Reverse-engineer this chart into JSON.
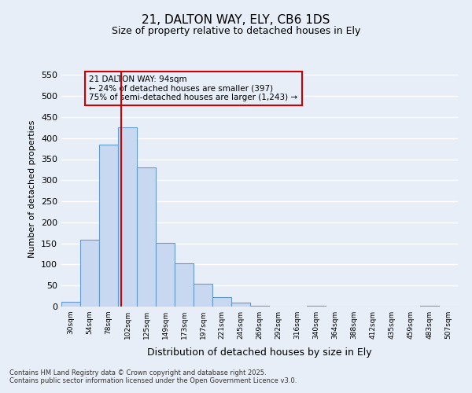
{
  "title1": "21, DALTON WAY, ELY, CB6 1DS",
  "title2": "Size of property relative to detached houses in Ely",
  "xlabel": "Distribution of detached houses by size in Ely",
  "ylabel": "Number of detached properties",
  "categories": [
    "30sqm",
    "54sqm",
    "78sqm",
    "102sqm",
    "125sqm",
    "149sqm",
    "173sqm",
    "197sqm",
    "221sqm",
    "245sqm",
    "269sqm",
    "292sqm",
    "316sqm",
    "340sqm",
    "364sqm",
    "388sqm",
    "412sqm",
    "435sqm",
    "459sqm",
    "483sqm",
    "507sqm"
  ],
  "values": [
    12,
    158,
    385,
    425,
    330,
    152,
    103,
    55,
    22,
    10,
    2,
    0,
    0,
    2,
    0,
    0,
    0,
    0,
    0,
    1,
    0
  ],
  "bar_color": "#c8d8f0",
  "bar_edge_color": "#6699cc",
  "vline_color": "#cc0000",
  "annotation_text": "21 DALTON WAY: 94sqm\n← 24% of detached houses are smaller (397)\n75% of semi-detached houses are larger (1,243) →",
  "annotation_box_facecolor": "#e8eef8",
  "annotation_box_edgecolor": "#cc0000",
  "background_color": "#e8eef8",
  "grid_color": "#ffffff",
  "ylim": [
    0,
    560
  ],
  "yticks": [
    0,
    50,
    100,
    150,
    200,
    250,
    300,
    350,
    400,
    450,
    500,
    550
  ],
  "footer1": "Contains HM Land Registry data © Crown copyright and database right 2025.",
  "footer2": "Contains public sector information licensed under the Open Government Licence v3.0."
}
